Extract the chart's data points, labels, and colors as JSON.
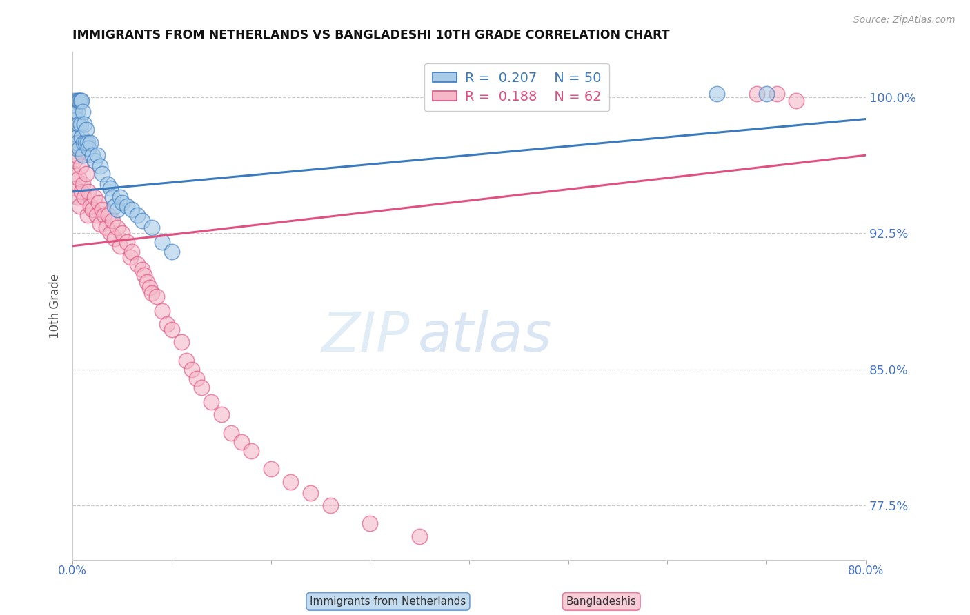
{
  "title": "IMMIGRANTS FROM NETHERLANDS VS BANGLADESHI 10TH GRADE CORRELATION CHART",
  "source": "Source: ZipAtlas.com",
  "ylabel": "10th Grade",
  "ytick_labels": [
    "100.0%",
    "92.5%",
    "85.0%",
    "77.5%"
  ],
  "ytick_values": [
    1.0,
    0.925,
    0.85,
    0.775
  ],
  "xmin": 0.0,
  "xmax": 0.8,
  "ymin": 0.745,
  "ymax": 1.025,
  "blue_R": 0.207,
  "blue_N": 50,
  "pink_R": 0.188,
  "pink_N": 62,
  "blue_color": "#a8cce8",
  "pink_color": "#f4b8c8",
  "blue_line_color": "#3a7abf",
  "pink_line_color": "#e05080",
  "legend_blue_label": "R =  0.207    N = 50",
  "legend_pink_label": "R =  0.188    N = 62",
  "watermark_zip": "ZIP",
  "watermark_atlas": "atlas",
  "blue_scatter_x": [
    0.001,
    0.002,
    0.002,
    0.003,
    0.003,
    0.003,
    0.004,
    0.004,
    0.004,
    0.005,
    0.005,
    0.005,
    0.006,
    0.006,
    0.007,
    0.007,
    0.008,
    0.008,
    0.009,
    0.009,
    0.01,
    0.01,
    0.011,
    0.012,
    0.013,
    0.014,
    0.015,
    0.016,
    0.018,
    0.02,
    0.022,
    0.025,
    0.028,
    0.03,
    0.035,
    0.038,
    0.04,
    0.042,
    0.045,
    0.048,
    0.05,
    0.055,
    0.06,
    0.065,
    0.07,
    0.08,
    0.09,
    0.1,
    0.65,
    0.7
  ],
  "blue_scatter_y": [
    0.975,
    0.998,
    0.992,
    0.985,
    0.98,
    0.995,
    0.988,
    0.978,
    0.972,
    0.998,
    0.992,
    0.975,
    0.998,
    0.985,
    0.998,
    0.972,
    0.998,
    0.985,
    0.998,
    0.978,
    0.968,
    0.992,
    0.975,
    0.985,
    0.975,
    0.982,
    0.975,
    0.972,
    0.975,
    0.968,
    0.965,
    0.968,
    0.962,
    0.958,
    0.952,
    0.95,
    0.945,
    0.94,
    0.938,
    0.945,
    0.942,
    0.94,
    0.938,
    0.935,
    0.932,
    0.928,
    0.92,
    0.915,
    1.002,
    1.002
  ],
  "pink_scatter_x": [
    0.001,
    0.002,
    0.003,
    0.004,
    0.005,
    0.006,
    0.007,
    0.008,
    0.009,
    0.01,
    0.012,
    0.014,
    0.015,
    0.016,
    0.018,
    0.02,
    0.022,
    0.024,
    0.026,
    0.028,
    0.03,
    0.032,
    0.034,
    0.036,
    0.038,
    0.04,
    0.042,
    0.045,
    0.048,
    0.05,
    0.055,
    0.058,
    0.06,
    0.065,
    0.07,
    0.072,
    0.075,
    0.078,
    0.08,
    0.085,
    0.09,
    0.095,
    0.1,
    0.11,
    0.115,
    0.12,
    0.125,
    0.13,
    0.14,
    0.15,
    0.16,
    0.17,
    0.18,
    0.2,
    0.22,
    0.24,
    0.26,
    0.3,
    0.35,
    0.69,
    0.71,
    0.73
  ],
  "pink_scatter_y": [
    0.958,
    0.965,
    0.95,
    0.968,
    0.945,
    0.955,
    0.94,
    0.962,
    0.948,
    0.952,
    0.945,
    0.958,
    0.935,
    0.948,
    0.94,
    0.938,
    0.945,
    0.935,
    0.942,
    0.93,
    0.938,
    0.935,
    0.928,
    0.935,
    0.925,
    0.932,
    0.922,
    0.928,
    0.918,
    0.925,
    0.92,
    0.912,
    0.915,
    0.908,
    0.905,
    0.902,
    0.898,
    0.895,
    0.892,
    0.89,
    0.882,
    0.875,
    0.872,
    0.865,
    0.855,
    0.85,
    0.845,
    0.84,
    0.832,
    0.825,
    0.815,
    0.81,
    0.805,
    0.795,
    0.788,
    0.782,
    0.775,
    0.765,
    0.758,
    1.002,
    1.002,
    0.998
  ],
  "blue_line_x": [
    0.0,
    0.8
  ],
  "blue_line_y": [
    0.948,
    0.988
  ],
  "pink_line_x": [
    0.0,
    0.8
  ],
  "pink_line_y": [
    0.918,
    0.968
  ]
}
